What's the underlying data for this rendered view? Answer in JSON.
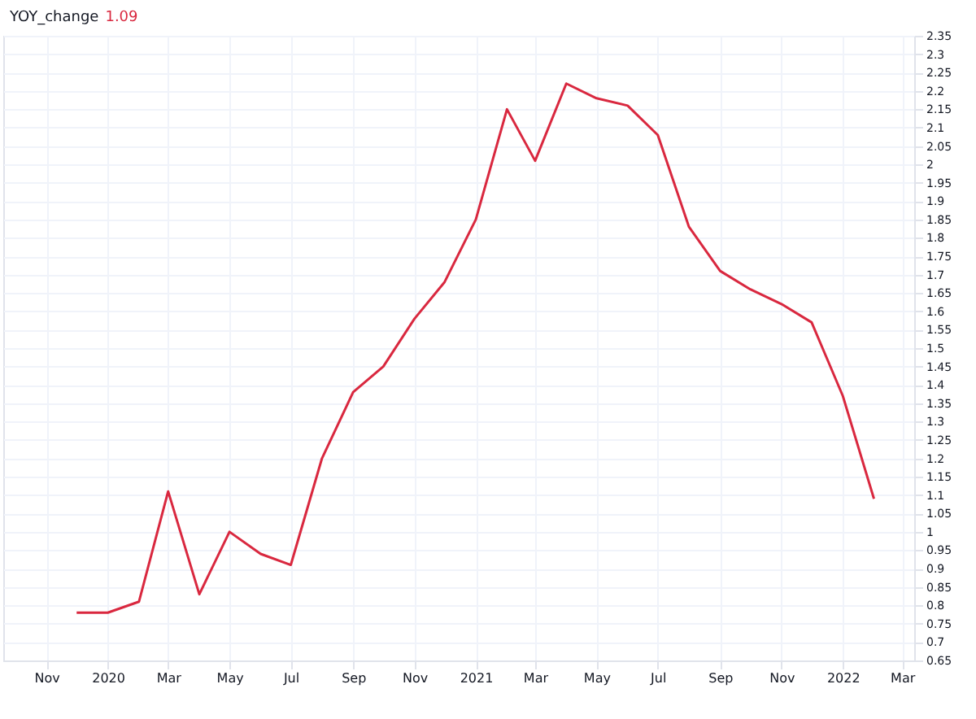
{
  "chart_data": {
    "type": "line",
    "title": "YOY_change",
    "annotations": [
      "1.09"
    ],
    "x": [
      "2019-12",
      "2020-01",
      "2020-02",
      "2020-03",
      "2020-04",
      "2020-05",
      "2020-06",
      "2020-07",
      "2020-08",
      "2020-09",
      "2020-10",
      "2020-11",
      "2020-12",
      "2021-01",
      "2021-02",
      "2021-03",
      "2021-04",
      "2021-05",
      "2021-06",
      "2021-07",
      "2021-08",
      "2021-09",
      "2021-10",
      "2021-11",
      "2021-12",
      "2022-01",
      "2022-02"
    ],
    "series": [
      {
        "color": "#d9283f",
        "values": [
          0.78,
          0.78,
          0.81,
          1.11,
          0.83,
          1.0,
          0.94,
          0.91,
          1.2,
          1.38,
          1.45,
          1.58,
          1.68,
          1.85,
          2.15,
          2.01,
          2.22,
          2.18,
          2.16,
          2.08,
          1.83,
          1.71,
          1.66,
          1.62,
          1.57,
          1.37,
          1.09
        ]
      }
    ],
    "xlim": [
      "2019-09-19",
      "2022-03-13"
    ],
    "xticks": [
      {
        "value": "2019-11",
        "label": "Nov"
      },
      {
        "value": "2020-01",
        "label": "2020"
      },
      {
        "value": "2020-03",
        "label": "Mar"
      },
      {
        "value": "2020-05",
        "label": "May"
      },
      {
        "value": "2020-07",
        "label": "Jul"
      },
      {
        "value": "2020-09",
        "label": "Sep"
      },
      {
        "value": "2020-11",
        "label": "Nov"
      },
      {
        "value": "2021-01",
        "label": "2021"
      },
      {
        "value": "2021-03",
        "label": "Mar"
      },
      {
        "value": "2021-05",
        "label": "May"
      },
      {
        "value": "2021-07",
        "label": "Jul"
      },
      {
        "value": "2021-09",
        "label": "Sep"
      },
      {
        "value": "2021-11",
        "label": "Nov"
      },
      {
        "value": "2022-01",
        "label": "2022"
      },
      {
        "value": "2022-03",
        "label": "Mar"
      }
    ],
    "ylim": [
      0.65,
      2.35
    ],
    "yticks": [
      0.65,
      0.7,
      0.75,
      0.8,
      0.85,
      0.9,
      0.95,
      1,
      1.05,
      1.1,
      1.15,
      1.2,
      1.25,
      1.3,
      1.35,
      1.4,
      1.45,
      1.5,
      1.55,
      1.6,
      1.65,
      1.7,
      1.75,
      1.8,
      1.85,
      1.9,
      1.95,
      2,
      2.05,
      2.1,
      2.15,
      2.2,
      2.25,
      2.3,
      2.35
    ],
    "grid": true,
    "marker": "none",
    "line_style": "solid"
  }
}
